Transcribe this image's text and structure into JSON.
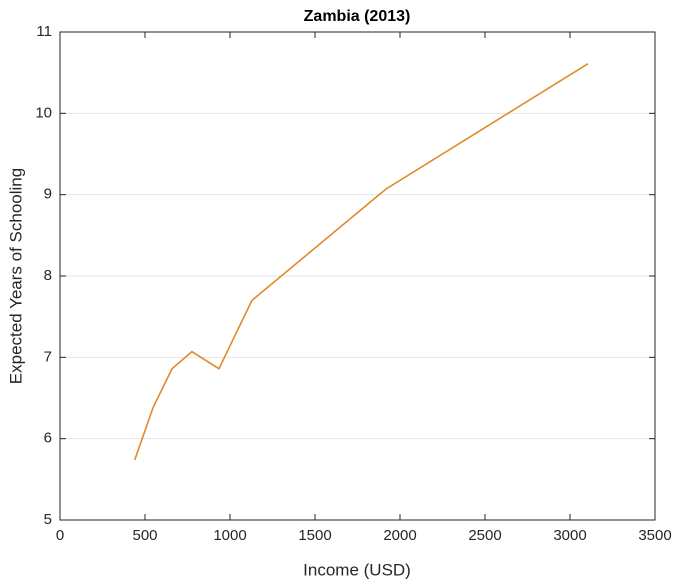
{
  "chart_data": {
    "type": "line",
    "title": "Zambia (2013)",
    "x_label": "Income (USD)",
    "y_label": "Expected Years of Schooling",
    "series": [
      {
        "name": "Zambia",
        "color": "#e3892b",
        "x": [
          440,
          547,
          659,
          776,
          935,
          1129,
          1918,
          3106
        ],
        "values": [
          5.74,
          6.38,
          6.86,
          7.07,
          6.86,
          7.7,
          9.07,
          10.61
        ]
      }
    ],
    "xlim": [
      0,
      3500
    ],
    "xticks": [
      0,
      500,
      1000,
      1500,
      2000,
      2500,
      3000,
      3500
    ],
    "ylim": [
      5,
      11
    ],
    "yticks": [
      5,
      6,
      7,
      8,
      9,
      10,
      11
    ],
    "grid": "y"
  }
}
